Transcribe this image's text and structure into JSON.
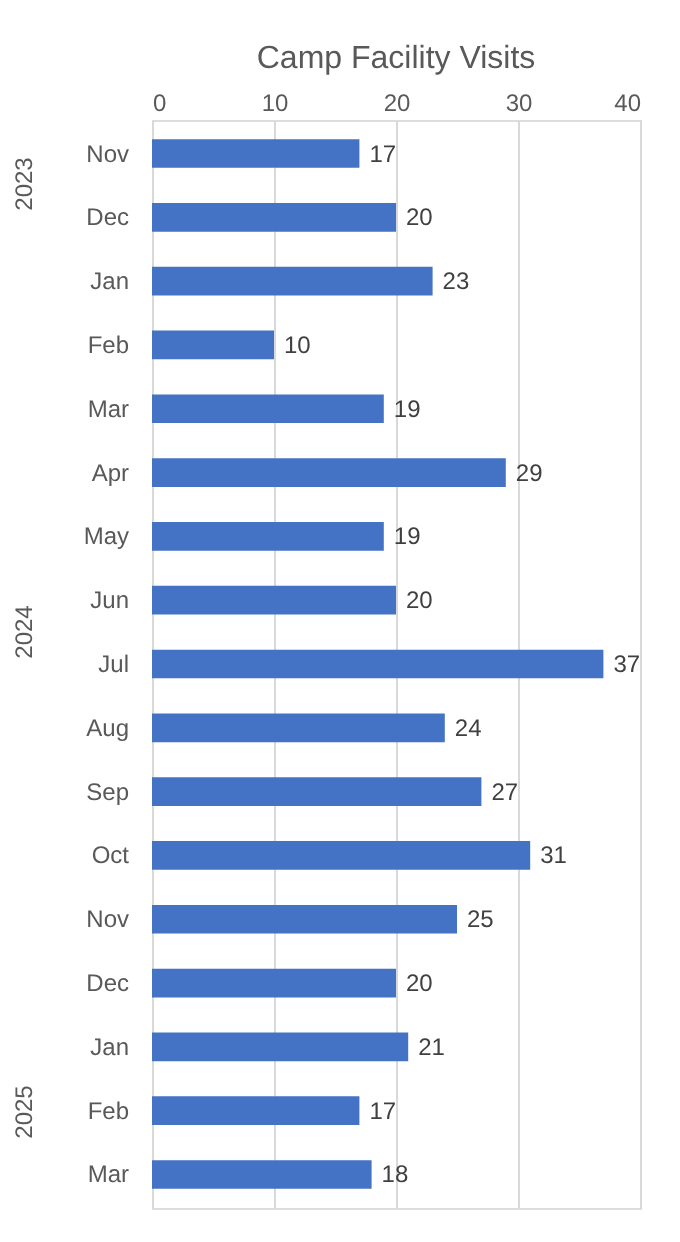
{
  "chart_data": {
    "type": "bar",
    "orientation": "horizontal",
    "title": "Camp Facility Visits",
    "categories": [
      "Nov",
      "Dec",
      "Jan",
      "Feb",
      "Mar",
      "Apr",
      "May",
      "Jun",
      "Jul",
      "Aug",
      "Sep",
      "Oct",
      "Nov",
      "Dec",
      "Jan",
      "Feb",
      "Mar"
    ],
    "values": [
      17,
      20,
      23,
      10,
      19,
      29,
      19,
      20,
      37,
      24,
      27,
      31,
      25,
      20,
      21,
      17,
      18
    ],
    "color": "#4472c4",
    "xlim": [
      0,
      40
    ],
    "xticks": [
      0,
      10,
      20,
      30,
      40
    ],
    "grid": "x",
    "data_labels": true,
    "annotations": [
      "2023",
      "2024",
      "2025"
    ]
  }
}
